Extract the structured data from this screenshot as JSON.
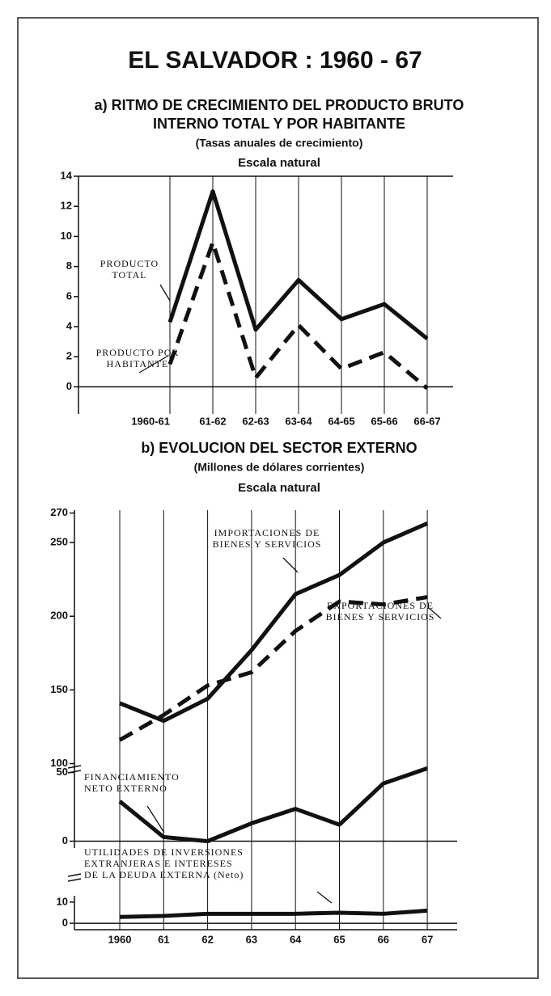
{
  "header": {
    "title": "EL SALVADOR : 1960 - 67"
  },
  "chart_data": [
    {
      "type": "line",
      "title": [
        "a) RITMO DE CRECIMIENTO DEL PRODUCTO BRUTO",
        "INTERNO TOTAL Y POR HABITANTE"
      ],
      "subtitle": "(Tasas anuales de crecimiento)",
      "scale_note": "Escala natural",
      "categories": [
        "1960-61",
        "61-62",
        "62-63",
        "63-64",
        "64-65",
        "65-66",
        "66-67"
      ],
      "ylim": [
        -1.8,
        14
      ],
      "yticks": [
        0,
        2,
        4,
        6,
        8,
        10,
        12,
        14
      ],
      "series": [
        {
          "name": [
            "PRODUCTO",
            "TOTAL"
          ],
          "color": "#111111",
          "dashed": false,
          "values": [
            4.3,
            13,
            3.8,
            7.1,
            4.5,
            5.5,
            3.2
          ]
        },
        {
          "name": [
            "PRODUCTO POR",
            "HABITANTE"
          ],
          "color": "#111111",
          "dashed": true,
          "values": [
            1.5,
            9.6,
            0.6,
            4.1,
            1.2,
            2.3,
            -0.1
          ]
        }
      ]
    },
    {
      "type": "line",
      "title": [
        "b) EVOLUCION DEL SECTOR EXTERNO"
      ],
      "subtitle": "(Millones de dólares corrientes)",
      "scale_note": "Escala natural",
      "categories": [
        "1960",
        "61",
        "62",
        "63",
        "64",
        "65",
        "66",
        "67"
      ],
      "panels": [
        {
          "ylim": [
            97,
            272
          ],
          "yticks": [
            100,
            150,
            200,
            250,
            270
          ],
          "series": [
            {
              "name": [
                "IMPORTACIONES DE",
                "BIENES Y SERVICIOS"
              ],
              "color": "#111111",
              "dashed": false,
              "values": [
                141,
                129,
                144,
                177,
                215,
                228,
                250,
                263
              ]
            },
            {
              "name": [
                "EXPORTACIONES DE",
                "BIENES Y SERVICIOS"
              ],
              "color": "#111111",
              "dashed": true,
              "values": [
                116,
                133,
                153,
                162,
                190,
                210,
                208,
                213
              ]
            }
          ]
        },
        {
          "ylim": [
            -5,
            55
          ],
          "yticks": [
            0,
            50
          ],
          "series": [
            {
              "name": [
                "FINANCIAMIENTO",
                "NETO EXTERNO"
              ],
              "color": "#111111",
              "dashed": false,
              "values": [
                29,
                3,
                0,
                13,
                23.5,
                12,
                42,
                53
              ]
            }
          ]
        },
        {
          "ylim": [
            -3,
            13
          ],
          "yticks": [
            0,
            10
          ],
          "series": [
            {
              "name": [
                "UTILIDADES DE INVERSIONES",
                "EXTRANJERAS E INTERESES",
                "DE LA DEUDA EXTERNA (Neto)"
              ],
              "color": "#111111",
              "dashed": false,
              "values": [
                3,
                3.5,
                4.5,
                4.5,
                4.5,
                5,
                4.5,
                6
              ]
            }
          ]
        }
      ]
    }
  ]
}
